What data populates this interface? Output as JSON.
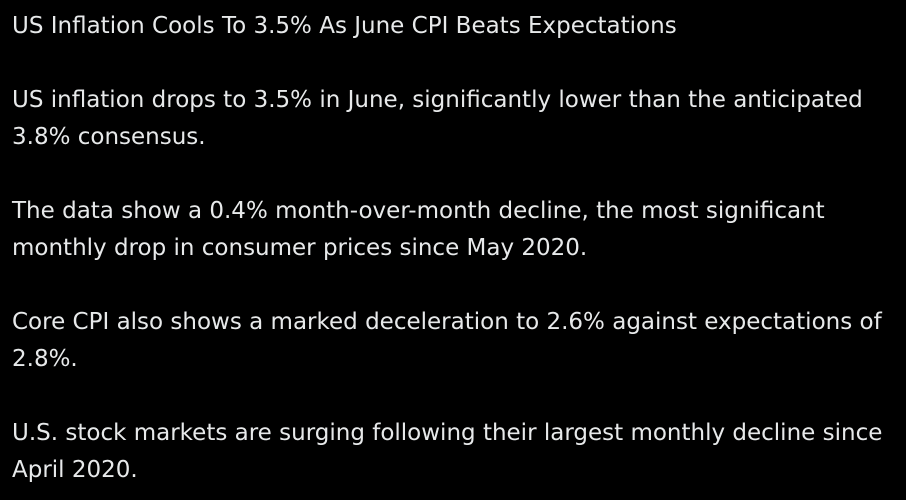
{
  "post": {
    "headline": "US Inflation Cools To 3.5% As June CPI Beats Expectations",
    "paragraphs": [
      "US inflation drops to 3.5% in June, significantly lower than the anticipated 3.8% consensus.",
      "The data show a 0.4% month-over-month decline, the most significant monthly drop in consumer prices since May 2020.",
      "Core CPI also shows a marked deceleration to 2.6% against expectations of 2.8%.",
      "U.S. stock markets are surging following their largest monthly decline since April 2020."
    ],
    "colors": {
      "background": "#000000",
      "text": "#e7e9ea"
    }
  }
}
